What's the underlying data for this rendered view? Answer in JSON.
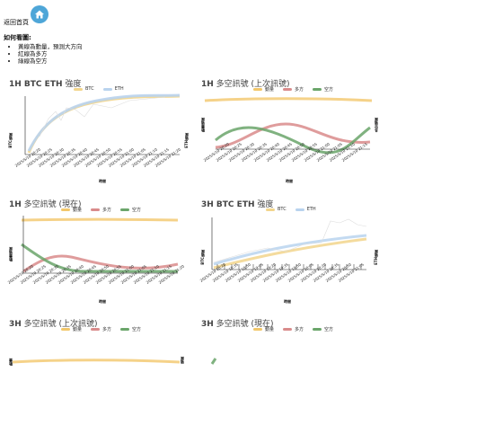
{
  "header": {
    "back_label": "返回首頁",
    "home_icon": "home-icon"
  },
  "howto": {
    "title": "如何看圖:",
    "items": [
      "黃線為動量，預測大方向",
      "紅線為多方",
      "綠線為空方"
    ]
  },
  "colors": {
    "momentum": "#f2c76b",
    "long": "#d98b8b",
    "short": "#6aa56a",
    "btc": "#f2d58c",
    "eth": "#b9d3ee"
  },
  "panels": [
    {
      "title_main": "1H BTC ETH",
      "title_sub": " 強度",
      "legend": [
        "BTC",
        "ETH"
      ],
      "ylabel": "BTC強度",
      "ylabel2": "ETH強度",
      "xlabel": "時間",
      "ticks": [
        "2025/5/10 20:20",
        "2025/5/10 20:25",
        "2025/5/10 20:30",
        "2025/5/10 20:35",
        "2025/5/10 20:40",
        "2025/5/10 20:45",
        "2025/5/10 20:50",
        "2025/5/10 20:55",
        "2025/5/10 21:00",
        "2025/5/10 21:05",
        "2025/5/10 21:10",
        "2025/5/10 21:15",
        "2025/5/10 21:20"
      ]
    },
    {
      "title_main": "1H",
      "title_sub": " 多空訊號 (上次訊號)",
      "legend": [
        "動量",
        "多方",
        "空方"
      ],
      "ylabel": "動量強度",
      "ylabel2": "多空強度",
      "xlabel": "時間",
      "ticks": [
        "2025/5/10 20:20",
        "2025/5/10 20:25",
        "2025/5/10 20:30",
        "2025/5/10 20:35",
        "2025/5/10 20:40",
        "2025/5/10 20:45",
        "2025/5/10 20:50",
        "2025/5/10 20:55",
        "2025/5/10 21:00",
        "2025/5/10 21:05",
        "2025/5/10 21:10",
        "2025/5/10 21:15"
      ]
    },
    {
      "title_main": "1H",
      "title_sub": " 多空訊號 (現在)",
      "legend": [
        "動量",
        "多方",
        "空方"
      ],
      "ylabel": "動量強度",
      "ylabel2": "",
      "xlabel": "時間",
      "ticks": [
        "2025/5/10 20:20",
        "2025/5/10 20:25",
        "2025/5/10 20:30",
        "2025/5/10 20:35",
        "2025/5/10 20:40",
        "2025/5/10 20:45",
        "2025/5/10 20:50",
        "2025/5/10 20:55",
        "2025/5/10 21:00",
        "2025/5/10 21:05",
        "2025/5/10 21:10",
        "2025/5/10 21:15",
        "2025/5/10 21:20"
      ]
    },
    {
      "title_main": "3H BTC ETH",
      "title_sub": " 強度",
      "legend": [
        "BTC",
        "ETH"
      ],
      "ylabel": "BTC強度",
      "ylabel2": "ETH強度",
      "xlabel": "時間",
      "ticks": [
        "2025/5/10 18:20",
        "2025/5/10 18:35",
        "2025/5/10 18:50",
        "2025/5/10 19:05",
        "2025/5/10 19:20",
        "2025/5/10 19:35",
        "2025/5/10 19:50",
        "2025/5/10 20:05",
        "2025/5/10 20:20",
        "2025/5/10 20:35",
        "2025/5/10 20:50",
        "2025/5/10 21:05"
      ]
    },
    {
      "title_main": "3H",
      "title_sub": " 多空訊號 (上次訊號)",
      "legend": [
        "動量",
        "多方",
        "空方"
      ],
      "ylabel": "動量",
      "ylabel2": "強度",
      "xlabel": "",
      "ticks": []
    },
    {
      "title_main": "3H",
      "title_sub": " 多空訊號 (現在)",
      "legend": [
        "動量",
        "多方",
        "空方"
      ],
      "ylabel": "",
      "ylabel2": "",
      "xlabel": "",
      "ticks": []
    }
  ]
}
